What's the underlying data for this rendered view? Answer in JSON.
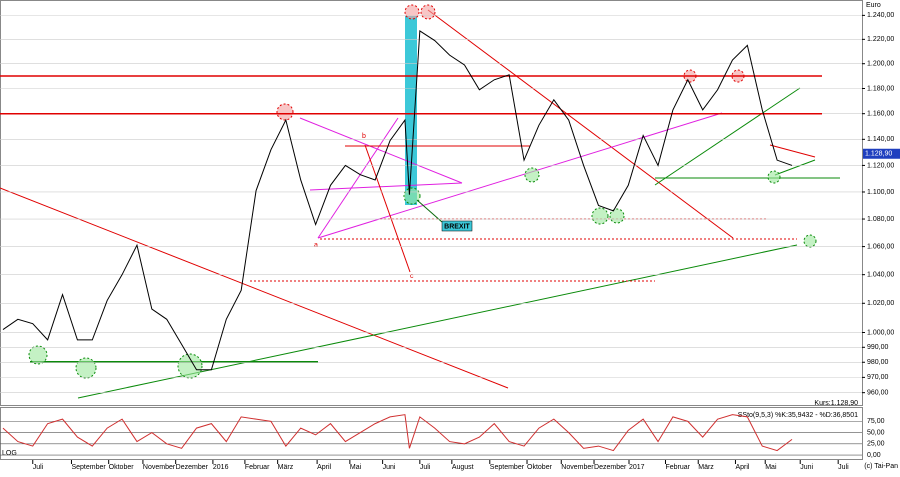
{
  "chart_data": [
    {
      "type": "line",
      "title": "Euro",
      "log": true,
      "x": [
        -4,
        -2,
        0,
        2,
        4,
        6,
        8,
        10,
        12,
        14,
        16,
        18,
        20,
        22,
        24,
        26,
        28,
        30,
        32,
        34,
        36,
        38,
        40,
        42,
        44,
        46,
        48,
        50,
        50.6,
        52,
        54,
        56,
        58,
        60,
        62,
        64,
        66,
        68,
        70,
        72,
        74,
        76,
        78,
        80,
        82,
        84,
        86,
        88,
        90,
        92,
        94,
        96,
        98,
        100,
        102
      ],
      "series": [
        {
          "color": "#000000",
          "values": [
            1002,
            1009,
            1006,
            995,
            1026,
            995,
            995,
            1022,
            1040,
            1061,
            1016,
            1009,
            992,
            975,
            975,
            1009,
            1029,
            1101,
            1132,
            1155,
            1109,
            1076,
            1105,
            1120,
            1113,
            1109,
            1139,
            1155,
            1098,
            1227,
            1219,
            1207,
            1199,
            1179,
            1187,
            1191,
            1124,
            1151,
            1171,
            1155,
            1120,
            1090,
            1086,
            1105,
            1143,
            1120,
            1163,
            1187,
            1163,
            1179,
            1203,
            1215,
            1163,
            1124,
            1120
          ]
        }
      ],
      "xlim": [
        -4.4,
        111.4
      ],
      "xticks": [
        {
          "value": 0,
          "label": "Juli"
        },
        {
          "value": 5.2,
          "label": "September"
        },
        {
          "value": 10.2,
          "label": "Oktober"
        },
        {
          "value": 14.8,
          "label": "November"
        },
        {
          "value": 19.2,
          "label": "Dezember"
        },
        {
          "value": 24.2,
          "label": "2016"
        },
        {
          "value": 28.5,
          "label": "Februar"
        },
        {
          "value": 32.9,
          "label": "März"
        },
        {
          "value": 38.2,
          "label": "April"
        },
        {
          "value": 42.6,
          "label": "Mai"
        },
        {
          "value": 47,
          "label": "Juni"
        },
        {
          "value": 52,
          "label": "Juli"
        },
        {
          "value": 56.3,
          "label": "August"
        },
        {
          "value": 61.4,
          "label": "September"
        },
        {
          "value": 66.4,
          "label": "Oktober"
        },
        {
          "value": 71,
          "label": "November"
        },
        {
          "value": 75.4,
          "label": "Dezember"
        },
        {
          "value": 80.1,
          "label": "2017"
        },
        {
          "value": 85,
          "label": "Februar"
        },
        {
          "value": 89.4,
          "label": "März"
        },
        {
          "value": 94.4,
          "label": "April"
        },
        {
          "value": 98.4,
          "label": "Mai"
        },
        {
          "value": 103.1,
          "label": "Juni"
        },
        {
          "value": 108.2,
          "label": "Juli"
        }
      ],
      "ylim": [
        952,
        1253
      ],
      "yticks": [
        {
          "value": 960,
          "label": "960,00"
        },
        {
          "value": 970,
          "label": "970,00"
        },
        {
          "value": 980,
          "label": "980,00"
        },
        {
          "value": 990,
          "label": "990,00"
        },
        {
          "value": 1000,
          "label": "1.000,00"
        },
        {
          "value": 1020,
          "label": "1.020,00"
        },
        {
          "value": 1040,
          "label": "1.040,00"
        },
        {
          "value": 1060,
          "label": "1.060,00"
        },
        {
          "value": 1080,
          "label": "1.080,00"
        },
        {
          "value": 1100,
          "label": "1.100,00"
        },
        {
          "value": 1120,
          "label": "1.120,00"
        },
        {
          "value": 1140,
          "label": "1.140,00"
        },
        {
          "value": 1160,
          "label": "1.160,00"
        },
        {
          "value": 1180,
          "label": "1.180,00"
        },
        {
          "value": 1200,
          "label": "1.200,00"
        },
        {
          "value": 1220,
          "label": "1.220,00"
        },
        {
          "value": 1240,
          "label": "1.240,00"
        }
      ],
      "grid": true,
      "levels": [
        {
          "value": 1190,
          "color": "#e00000"
        },
        {
          "value": 1160,
          "color": "#e00000"
        }
      ],
      "last": {
        "value": 1128.9,
        "label": "1.128,90"
      },
      "annotations": [
        "BREXIT",
        "a",
        "b",
        "c",
        "Kurs:1.128,90",
        "LOG"
      ]
    },
    {
      "type": "line",
      "title": "SSto(9,5,3) %K:35,9432 - %D:36,8501",
      "series": [
        {
          "color": "#d03030",
          "values": [
            60,
            30,
            20,
            70,
            80,
            40,
            20,
            60,
            80,
            30,
            50,
            25,
            15,
            60,
            70,
            30,
            85,
            80,
            75,
            20,
            60,
            45,
            70,
            30,
            50,
            70,
            85,
            90,
            15,
            85,
            60,
            30,
            25,
            40,
            70,
            30,
            20,
            60,
            80,
            50,
            15,
            20,
            10,
            55,
            80,
            30,
            85,
            75,
            40,
            80,
            90,
            85,
            20,
            10,
            35
          ]
        }
      ],
      "ylim": [
        -11,
        107
      ],
      "yticks": [
        {
          "value": 0,
          "label": "0,00"
        },
        {
          "value": 25,
          "label": "25,00"
        },
        {
          "value": 50,
          "label": "50,00"
        },
        {
          "value": 75,
          "label": "75,00"
        }
      ],
      "credit": "(c) Tai-Pan"
    }
  ]
}
